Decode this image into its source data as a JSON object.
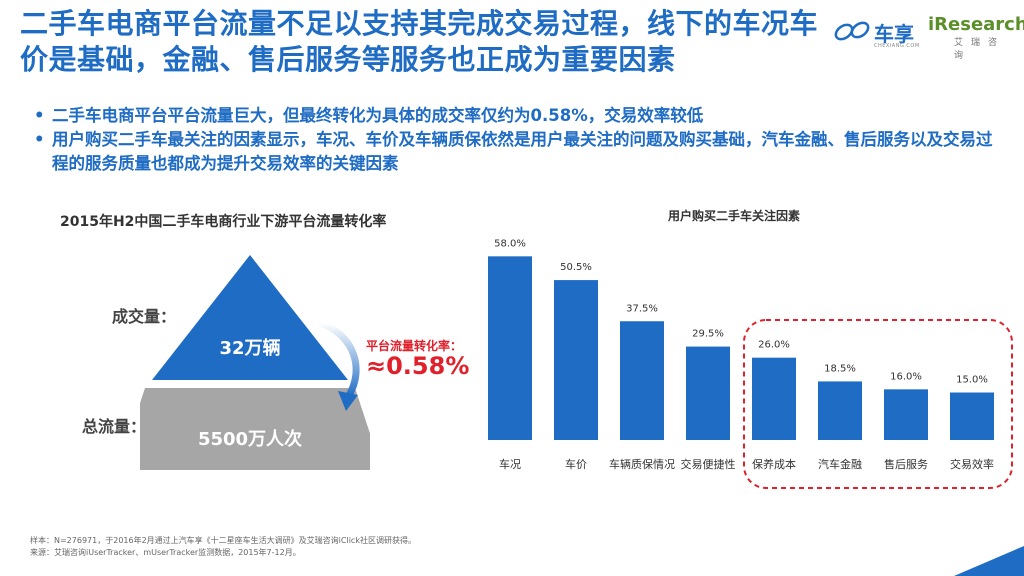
{
  "header": {
    "title": "二手车电商平台流量不足以支持其完成交易过程，线下的车况车价是基础，金融、售后服务等服务也正成为重要因素",
    "logo_cx": "车享",
    "logo_cx_sub": "CHEXIANG.COM",
    "logo_ir": "iResearch",
    "logo_ir_sub": "艾瑞咨询"
  },
  "bullets": [
    "二手车电商平台平台流量巨大，但最终转化为具体的成交率仅约为0.58%，交易效率较低",
    "用户购买二手车最关注的因素显示，车况、车价及车辆质保依然是用户最关注的问题及购买基础，汽车金融、售后服务以及交易过程的服务质量也都成为提升交易效率的关键因素"
  ],
  "funnel": {
    "title": "2015年H2中国二手车电商行业下游平台流量转化率",
    "deal_label": "成交量：",
    "deal_value": "32万辆",
    "flow_label": "总流量：",
    "flow_value": "5500万人次",
    "conv_label": "平台流量转化率：",
    "conv_value": "≈0.58%",
    "colors": {
      "top": "#1f6cc4",
      "bottom": "#a6a6a6",
      "accent": "#e0202a"
    }
  },
  "chart_data": {
    "type": "bar",
    "title": "用户购买二手车关注因素",
    "categories": [
      "车况",
      "车价",
      "车辆质保情况",
      "交易便捷性",
      "保养成本",
      "汽车金融",
      "售后服务",
      "交易效率"
    ],
    "values": [
      58.0,
      50.5,
      37.5,
      29.5,
      26.0,
      18.5,
      16.0,
      15.0
    ],
    "value_labels": [
      "58.0%",
      "50.5%",
      "37.5%",
      "29.5%",
      "26.0%",
      "18.5%",
      "16.0%",
      "15.0%"
    ],
    "highlight_from_index": 4,
    "bar_color": "#1f6cc4",
    "highlight_color": "#e0202a",
    "ylim": [
      0,
      60
    ]
  },
  "footer": {
    "note1": "样本：N=276971，于2016年2月通过上汽车享《十二星座车生活大调研》及艾瑞咨询iClick社区调研获得。",
    "note2": "来源：艾瑞咨询iUserTracker、mUserTracker监测数据，2015年7-12月。"
  }
}
